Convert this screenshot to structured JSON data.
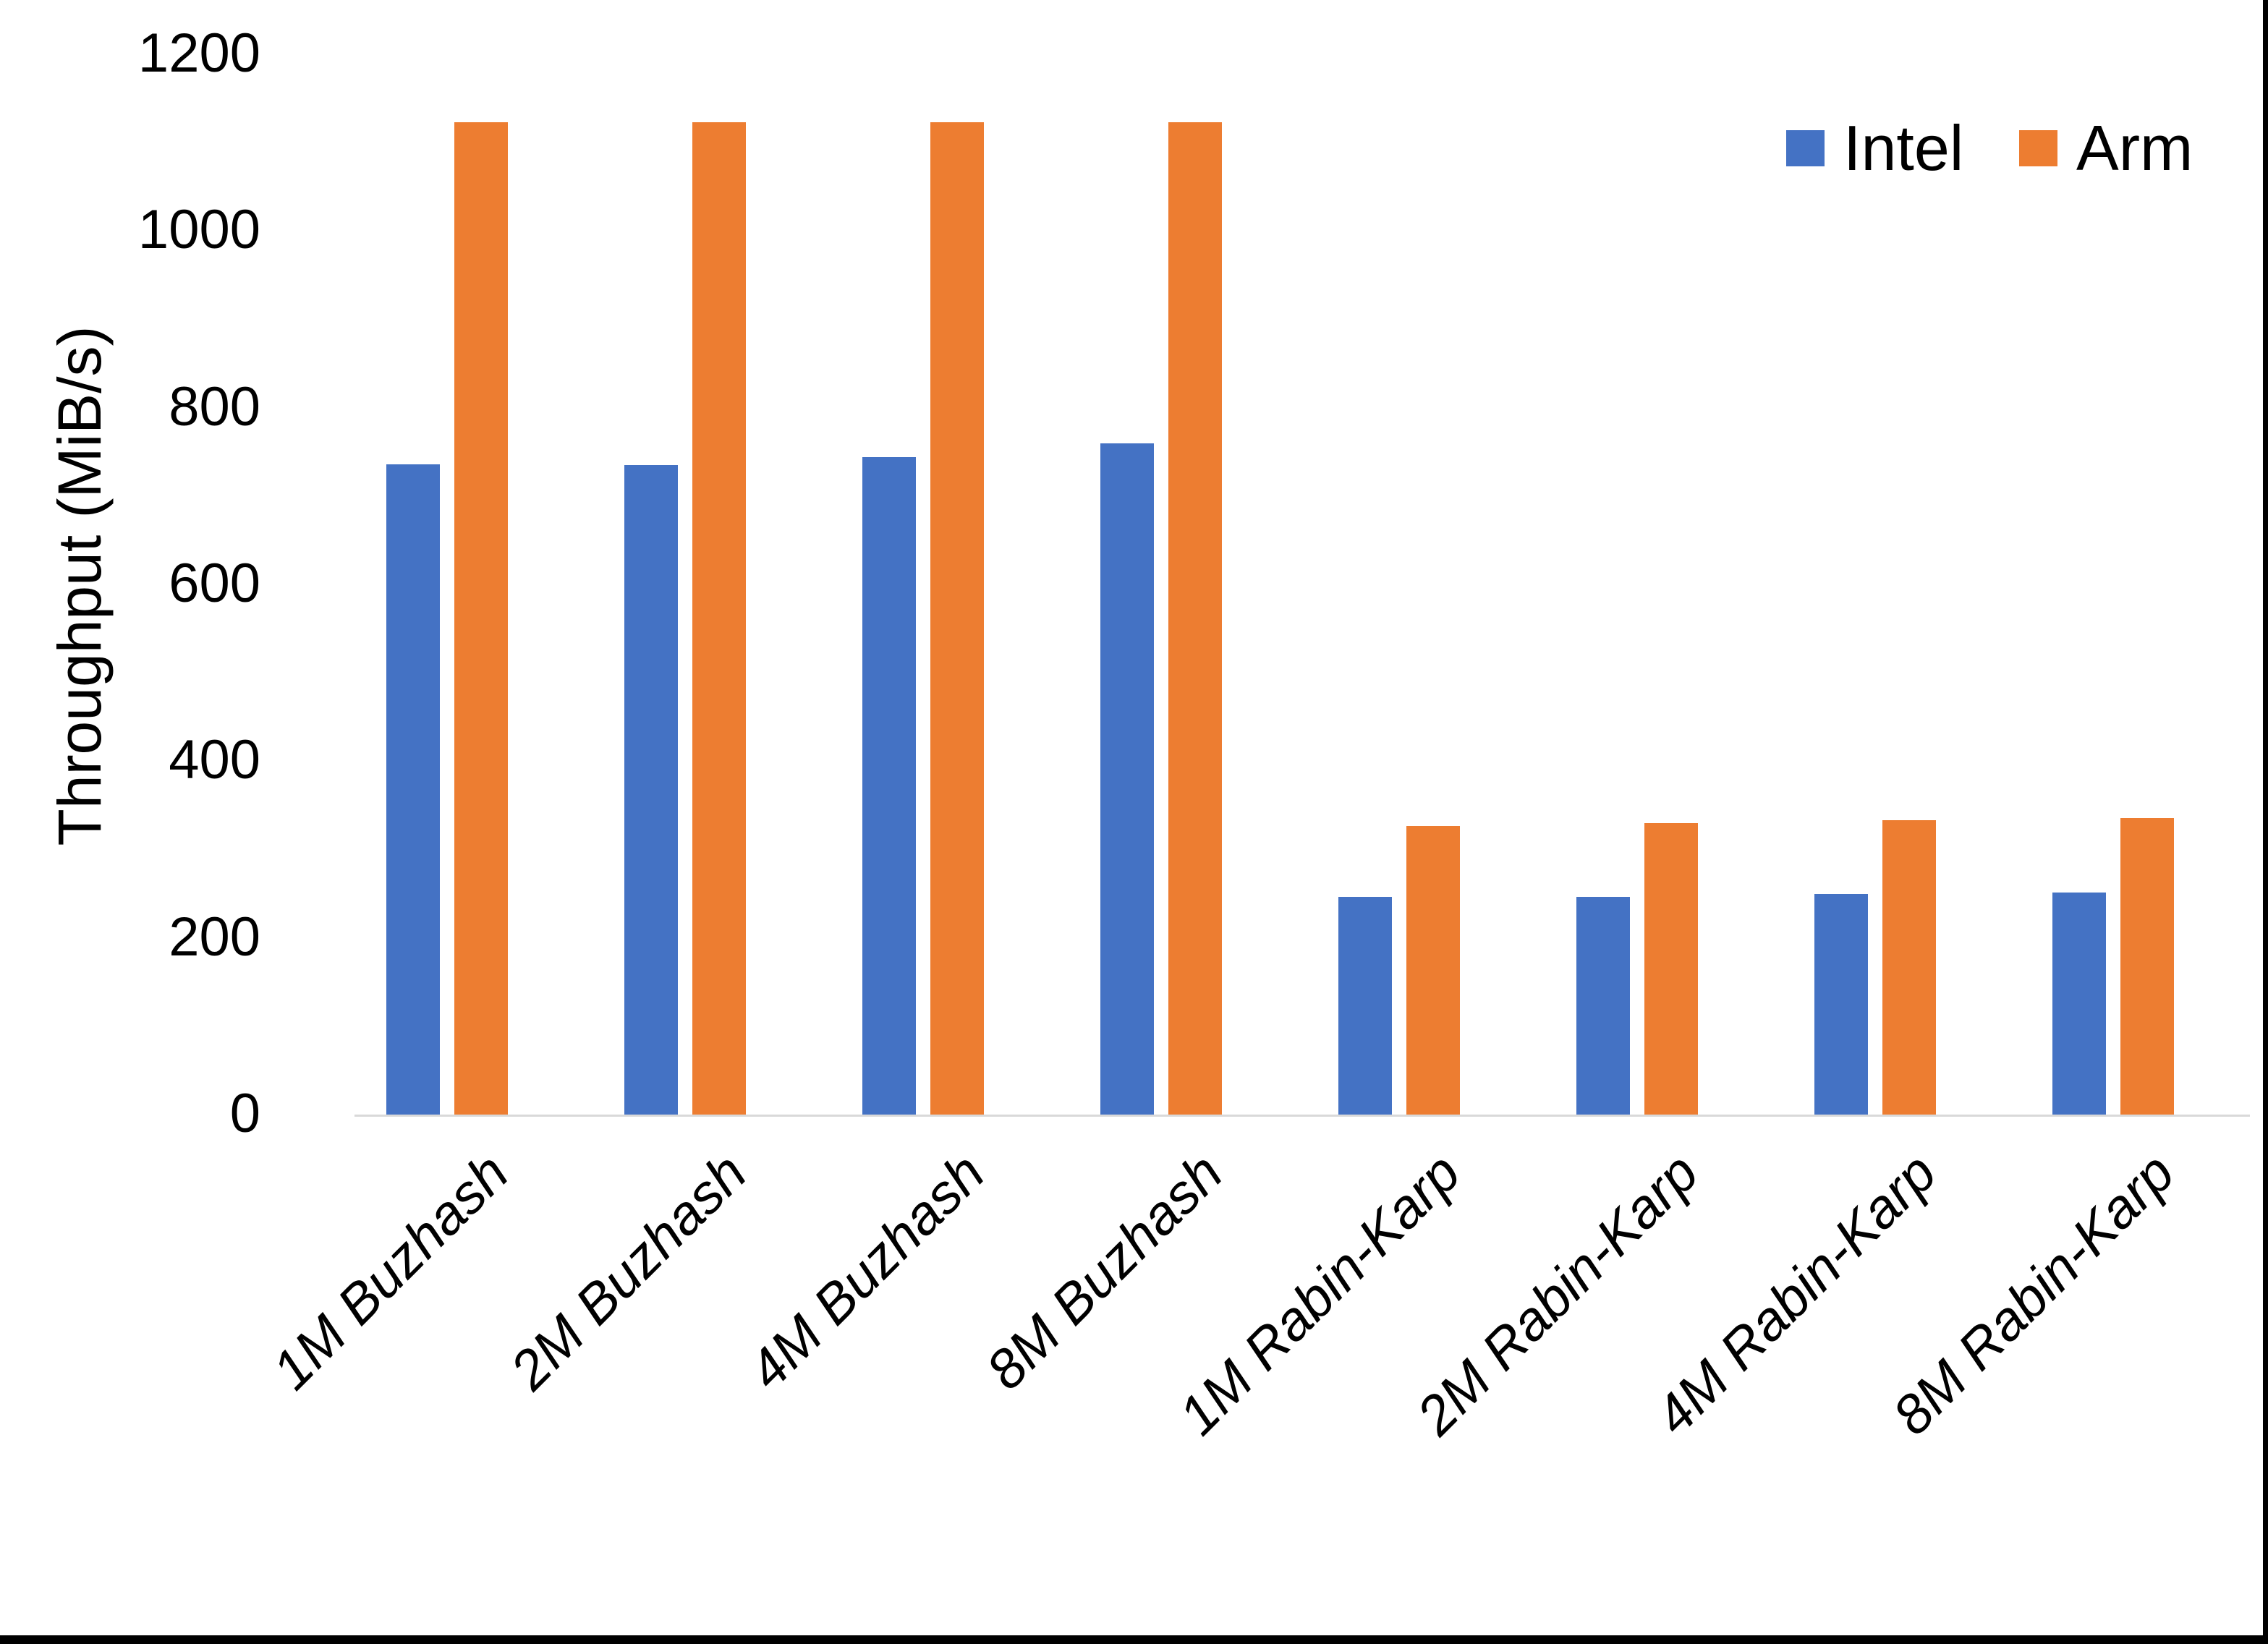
{
  "figure": {
    "y_axis_title": "Throughput (MiB/s)",
    "y_tick_labels": [
      "1200",
      "1000",
      "800",
      "600",
      "400",
      "200",
      "0"
    ],
    "colors": {
      "intel": "#4472C4",
      "arm": "#ED7D31",
      "baseline": "#D9D9D9",
      "text": "#000000"
    }
  },
  "legend": {
    "items": [
      {
        "label": "Intel",
        "color": "#4472C4"
      },
      {
        "label": "Arm",
        "color": "#ED7D31"
      }
    ]
  },
  "chart_data": {
    "type": "bar",
    "title": "",
    "xlabel": "",
    "ylabel": "Throughput (MiB/s)",
    "ylim": [
      0,
      1200
    ],
    "ytick_step": 200,
    "grid": false,
    "legend_position": "top-right",
    "categories": [
      "1M Buzhash",
      "2M Buzhash",
      "4M Buzhash",
      "8M Buzhash",
      "1M Rabin-Karp",
      "2M Rabin-Karp",
      "4M Rabin-Karp",
      "8M Rabin-Karp"
    ],
    "series": [
      {
        "name": "Intel",
        "color": "#4472C4",
        "values": [
          736,
          735,
          744,
          760,
          246,
          246,
          250,
          251
        ]
      },
      {
        "name": "Arm",
        "color": "#ED7D31",
        "values": [
          1123,
          1123,
          1123,
          1123,
          327,
          330,
          333,
          336
        ]
      }
    ]
  }
}
